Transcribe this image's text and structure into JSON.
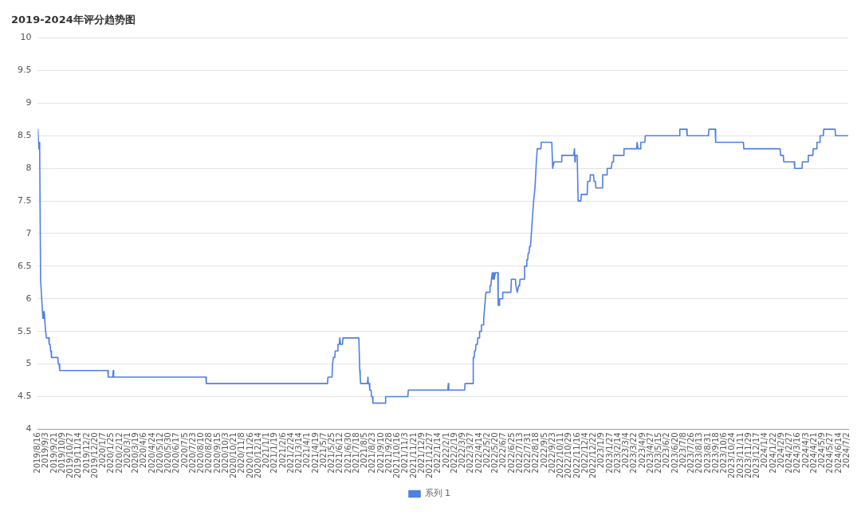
{
  "chart_data": {
    "type": "line",
    "title": "2019-2024年评分趋势图",
    "x": [
      "2019-08-16",
      "2019-08-18",
      "2019-08-19",
      "2019-08-20",
      "2019-08-22",
      "2019-08-27",
      "2019-08-28",
      "2019-08-29",
      "2019-08-30",
      "2019-09-02",
      "2019-09-04",
      "2019-09-09",
      "2019-09-10",
      "2019-09-12",
      "2019-09-13",
      "2019-09-14",
      "2019-09-15",
      "2019-09-29",
      "2019-09-30",
      "2019-10-02",
      "2019-10-03",
      "2020-01-17",
      "2020-01-18",
      "2020-01-28",
      "2020-01-29",
      "2020-01-30",
      "2020-08-20",
      "2020-08-21",
      "2021-05-15",
      "2021-05-16",
      "2021-05-25",
      "2021-05-26",
      "2021-05-28",
      "2021-05-31",
      "2021-06-01",
      "2021-06-06",
      "2021-06-07",
      "2021-06-10",
      "2021-06-11",
      "2021-06-12",
      "2021-06-13",
      "2021-06-17",
      "2021-06-18",
      "2021-07-23",
      "2021-07-25",
      "2021-07-26",
      "2021-07-27",
      "2021-08-11",
      "2021-08-12",
      "2021-08-13",
      "2021-08-15",
      "2021-08-16",
      "2021-08-19",
      "2021-08-20",
      "2021-08-22",
      "2021-08-23",
      "2021-09-19",
      "2021-09-20",
      "2021-11-08",
      "2021-11-09",
      "2022-02-04",
      "2022-02-05",
      "2022-02-06",
      "2022-03-13",
      "2022-03-14",
      "2022-03-31",
      "2022-04-01",
      "2022-04-03",
      "2022-04-04",
      "2022-04-06",
      "2022-04-07",
      "2022-04-10",
      "2022-04-11",
      "2022-04-14",
      "2022-04-15",
      "2022-04-18",
      "2022-04-19",
      "2022-04-23",
      "2022-04-24",
      "2022-04-29",
      "2022-05-07",
      "2022-05-08",
      "2022-05-10",
      "2022-05-11",
      "2022-05-13",
      "2022-05-14",
      "2022-05-16",
      "2022-05-17",
      "2022-05-20",
      "2022-05-25",
      "2022-05-26",
      "2022-05-28",
      "2022-05-29",
      "2022-06-04",
      "2022-06-05",
      "2022-06-23",
      "2022-06-24",
      "2022-07-03",
      "2022-07-04",
      "2022-07-07",
      "2022-07-10",
      "2022-07-12",
      "2022-07-13",
      "2022-07-22",
      "2022-07-23",
      "2022-07-27",
      "2022-07-28",
      "2022-07-30",
      "2022-07-31",
      "2022-08-02",
      "2022-08-03",
      "2022-08-05",
      "2022-08-07",
      "2022-08-12",
      "2022-08-15",
      "2022-08-18",
      "2022-08-20",
      "2022-08-28",
      "2022-08-29",
      "2022-09-21",
      "2022-09-23",
      "2022-09-26",
      "2022-10-12",
      "2022-10-13",
      "2022-11-08",
      "2022-11-10",
      "2022-11-11",
      "2022-11-12",
      "2022-11-16",
      "2022-11-18",
      "2022-11-24",
      "2022-11-25",
      "2022-12-08",
      "2022-12-09",
      "2022-12-14",
      "2022-12-15",
      "2022-12-22",
      "2022-12-23",
      "2022-12-26",
      "2022-12-27",
      "2023-01-10",
      "2023-01-11",
      "2023-01-20",
      "2023-01-21",
      "2023-01-30",
      "2023-02-01",
      "2023-02-03",
      "2023-02-04",
      "2023-02-26",
      "2023-02-27",
      "2023-03-27",
      "2023-03-28",
      "2023-03-30",
      "2023-04-04",
      "2023-04-05",
      "2023-04-14",
      "2023-04-15",
      "2023-06-29",
      "2023-06-30",
      "2023-07-15",
      "2023-07-16",
      "2023-09-01",
      "2023-09-02",
      "2023-09-16",
      "2023-09-17",
      "2023-11-17",
      "2023-11-18",
      "2024-02-06",
      "2024-02-07",
      "2024-02-13",
      "2024-02-14",
      "2024-03-08",
      "2024-03-09",
      "2024-03-25",
      "2024-03-26",
      "2024-04-07",
      "2024-04-08",
      "2024-04-18",
      "2024-04-19",
      "2024-04-26",
      "2024-04-27",
      "2024-05-03",
      "2024-05-04",
      "2024-05-11",
      "2024-05-12",
      "2024-06-06",
      "2024-06-07",
      "2024-07-05"
    ],
    "series": [
      {
        "name": "系列 1",
        "color": "#4f7fe3",
        "values": [
          8.6,
          8.3,
          8.4,
          8.3,
          6.3,
          5.7,
          5.8,
          5.7,
          5.8,
          5.5,
          5.4,
          5.4,
          5.3,
          5.3,
          5.2,
          5.2,
          5.1,
          5.1,
          5.0,
          5.0,
          4.9,
          4.9,
          4.8,
          4.8,
          4.9,
          4.8,
          4.8,
          4.7,
          4.7,
          4.8,
          4.8,
          5.0,
          5.1,
          5.1,
          5.2,
          5.2,
          5.3,
          5.3,
          5.4,
          5.4,
          5.3,
          5.3,
          5.4,
          5.4,
          4.9,
          4.8,
          4.7,
          4.7,
          4.8,
          4.7,
          4.7,
          4.6,
          4.6,
          4.5,
          4.5,
          4.4,
          4.4,
          4.5,
          4.5,
          4.6,
          4.6,
          4.7,
          4.6,
          4.6,
          4.7,
          4.7,
          5.1,
          5.1,
          5.2,
          5.2,
          5.3,
          5.3,
          5.4,
          5.4,
          5.5,
          5.5,
          5.6,
          5.6,
          5.7,
          6.1,
          6.1,
          6.2,
          6.2,
          6.3,
          6.4,
          6.3,
          6.4,
          6.3,
          6.4,
          6.4,
          5.9,
          5.9,
          6.0,
          6.0,
          6.1,
          6.1,
          6.3,
          6.3,
          6.2,
          6.1,
          6.2,
          6.2,
          6.3,
          6.3,
          6.5,
          6.5,
          6.6,
          6.6,
          6.7,
          6.7,
          6.8,
          6.8,
          7.0,
          7.5,
          7.7,
          8.1,
          8.3,
          8.3,
          8.4,
          8.4,
          8.0,
          8.1,
          8.1,
          8.2,
          8.2,
          8.3,
          8.1,
          8.2,
          8.2,
          7.5,
          7.5,
          7.6,
          7.6,
          7.8,
          7.8,
          7.9,
          7.9,
          7.8,
          7.8,
          7.7,
          7.7,
          7.9,
          7.9,
          8.0,
          8.0,
          8.1,
          8.1,
          8.2,
          8.2,
          8.3,
          8.3,
          8.4,
          8.3,
          8.3,
          8.4,
          8.4,
          8.5,
          8.5,
          8.6,
          8.6,
          8.5,
          8.5,
          8.6,
          8.6,
          8.4,
          8.4,
          8.3,
          8.3,
          8.2,
          8.2,
          8.1,
          8.1,
          8.0,
          8.0,
          8.1,
          8.1,
          8.2,
          8.2,
          8.3,
          8.3,
          8.4,
          8.4,
          8.5,
          8.5,
          8.6,
          8.6,
          8.5,
          8.5
        ]
      }
    ],
    "xlim": [
      "2019-08-16",
      "2024-07-05"
    ],
    "xticks": [
      {
        "value": "2019-08-16",
        "label": "2019/8/16"
      },
      {
        "value": "2019-09-03",
        "label": "2019/9/3"
      },
      {
        "value": "2019-09-21",
        "label": "2019/9/21"
      },
      {
        "value": "2019-10-09",
        "label": "2019/10/9"
      },
      {
        "value": "2019-10-27",
        "label": "2019/10/27"
      },
      {
        "value": "2019-11-14",
        "label": "2019/11/14"
      },
      {
        "value": "2019-12-02",
        "label": "2019/12/2"
      },
      {
        "value": "2019-12-20",
        "label": "2019/12/20"
      },
      {
        "value": "2020-01-07",
        "label": "2020/1/7"
      },
      {
        "value": "2020-01-25",
        "label": "2020/1/25"
      },
      {
        "value": "2020-02-12",
        "label": "2020/2/12"
      },
      {
        "value": "2020-03-01",
        "label": "2020/3/1"
      },
      {
        "value": "2020-03-19",
        "label": "2020/3/19"
      },
      {
        "value": "2020-04-06",
        "label": "2020/4/6"
      },
      {
        "value": "2020-04-24",
        "label": "2020/4/24"
      },
      {
        "value": "2020-05-12",
        "label": "2020/5/12"
      },
      {
        "value": "2020-05-30",
        "label": "2020/5/30"
      },
      {
        "value": "2020-06-17",
        "label": "2020/6/17"
      },
      {
        "value": "2020-07-05",
        "label": "2020/7/5"
      },
      {
        "value": "2020-07-23",
        "label": "2020/7/23"
      },
      {
        "value": "2020-08-10",
        "label": "2020/8/10"
      },
      {
        "value": "2020-08-28",
        "label": "2020/8/28"
      },
      {
        "value": "2020-09-15",
        "label": "2020/9/15"
      },
      {
        "value": "2020-10-03",
        "label": "2020/10/3"
      },
      {
        "value": "2020-10-21",
        "label": "2020/10/21"
      },
      {
        "value": "2020-11-08",
        "label": "2020/11/8"
      },
      {
        "value": "2020-11-26",
        "label": "2020/11/26"
      },
      {
        "value": "2020-12-14",
        "label": "2020/12/14"
      },
      {
        "value": "2021-01-01",
        "label": "2021/1/1"
      },
      {
        "value": "2021-01-19",
        "label": "2021/1/19"
      },
      {
        "value": "2021-02-06",
        "label": "2021/2/6"
      },
      {
        "value": "2021-02-24",
        "label": "2021/2/24"
      },
      {
        "value": "2021-03-14",
        "label": "2021/3/14"
      },
      {
        "value": "2021-04-01",
        "label": "2021/4/1"
      },
      {
        "value": "2021-04-19",
        "label": "2021/4/19"
      },
      {
        "value": "2021-05-07",
        "label": "2021/5/7"
      },
      {
        "value": "2021-05-25",
        "label": "2021/5/25"
      },
      {
        "value": "2021-06-12",
        "label": "2021/6/12"
      },
      {
        "value": "2021-06-30",
        "label": "2021/6/30"
      },
      {
        "value": "2021-07-18",
        "label": "2021/7/18"
      },
      {
        "value": "2021-08-05",
        "label": "2021/8/5"
      },
      {
        "value": "2021-08-23",
        "label": "2021/8/23"
      },
      {
        "value": "2021-09-10",
        "label": "2021/9/10"
      },
      {
        "value": "2021-09-28",
        "label": "2021/9/28"
      },
      {
        "value": "2021-10-16",
        "label": "2021/10/16"
      },
      {
        "value": "2021-11-03",
        "label": "2021/11/3"
      },
      {
        "value": "2021-11-21",
        "label": "2021/11/21"
      },
      {
        "value": "2021-12-09",
        "label": "2021/12/9"
      },
      {
        "value": "2021-12-27",
        "label": "2021/12/27"
      },
      {
        "value": "2022-01-14",
        "label": "2022/1/14"
      },
      {
        "value": "2022-02-01",
        "label": "2022/2/1"
      },
      {
        "value": "2022-02-19",
        "label": "2022/2/19"
      },
      {
        "value": "2022-03-09",
        "label": "2022/3/9"
      },
      {
        "value": "2022-03-27",
        "label": "2022/3/27"
      },
      {
        "value": "2022-04-14",
        "label": "2022/4/14"
      },
      {
        "value": "2022-05-02",
        "label": "2022/5/2"
      },
      {
        "value": "2022-05-20",
        "label": "2022/5/20"
      },
      {
        "value": "2022-06-07",
        "label": "2022/6/7"
      },
      {
        "value": "2022-06-25",
        "label": "2022/6/25"
      },
      {
        "value": "2022-07-13",
        "label": "2022/7/13"
      },
      {
        "value": "2022-07-31",
        "label": "2022/7/31"
      },
      {
        "value": "2022-08-18",
        "label": "2022/8/18"
      },
      {
        "value": "2022-09-05",
        "label": "2022/9/5"
      },
      {
        "value": "2022-09-23",
        "label": "2022/9/23"
      },
      {
        "value": "2022-10-11",
        "label": "2022/10/11"
      },
      {
        "value": "2022-10-29",
        "label": "2022/10/29"
      },
      {
        "value": "2022-11-16",
        "label": "2022/11/16"
      },
      {
        "value": "2022-12-04",
        "label": "2022/12/4"
      },
      {
        "value": "2022-12-22",
        "label": "2022/12/22"
      },
      {
        "value": "2023-01-09",
        "label": "2023/1/9"
      },
      {
        "value": "2023-01-27",
        "label": "2023/1/27"
      },
      {
        "value": "2023-02-14",
        "label": "2023/2/14"
      },
      {
        "value": "2023-03-04",
        "label": "2023/3/4"
      },
      {
        "value": "2023-03-22",
        "label": "2023/3/22"
      },
      {
        "value": "2023-04-09",
        "label": "2023/4/9"
      },
      {
        "value": "2023-04-27",
        "label": "2023/4/27"
      },
      {
        "value": "2023-05-15",
        "label": "2023/5/15"
      },
      {
        "value": "2023-06-02",
        "label": "2023/6/2"
      },
      {
        "value": "2023-06-20",
        "label": "2023/6/20"
      },
      {
        "value": "2023-07-08",
        "label": "2023/7/8"
      },
      {
        "value": "2023-07-26",
        "label": "2023/7/26"
      },
      {
        "value": "2023-08-13",
        "label": "2023/8/13"
      },
      {
        "value": "2023-08-31",
        "label": "2023/8/31"
      },
      {
        "value": "2023-09-18",
        "label": "2023/9/18"
      },
      {
        "value": "2023-10-06",
        "label": "2023/10/6"
      },
      {
        "value": "2023-10-24",
        "label": "2023/10/24"
      },
      {
        "value": "2023-11-11",
        "label": "2023/11/11"
      },
      {
        "value": "2023-11-29",
        "label": "2023/11/29"
      },
      {
        "value": "2023-12-17",
        "label": "2023/12/17"
      },
      {
        "value": "2024-01-04",
        "label": "2024/1/4"
      },
      {
        "value": "2024-01-22",
        "label": "2024/1/22"
      },
      {
        "value": "2024-02-09",
        "label": "2024/2/9"
      },
      {
        "value": "2024-02-27",
        "label": "2024/2/27"
      },
      {
        "value": "2024-03-16",
        "label": "2024/3/16"
      },
      {
        "value": "2024-04-03",
        "label": "2024/4/3"
      },
      {
        "value": "2024-04-21",
        "label": "2024/4/21"
      },
      {
        "value": "2024-05-09",
        "label": "2024/5/9"
      },
      {
        "value": "2024-05-27",
        "label": "2024/5/27"
      },
      {
        "value": "2024-06-14",
        "label": "2024/6/14"
      },
      {
        "value": "2024-07-02",
        "label": "2024/7/2"
      }
    ],
    "ylim": [
      4,
      10
    ],
    "yticks": [
      4,
      4.5,
      5,
      5.5,
      6,
      6.5,
      7,
      7.5,
      8,
      8.5,
      9,
      9.5,
      10
    ],
    "grid": "y",
    "legend": "bottom",
    "marker": "none"
  }
}
